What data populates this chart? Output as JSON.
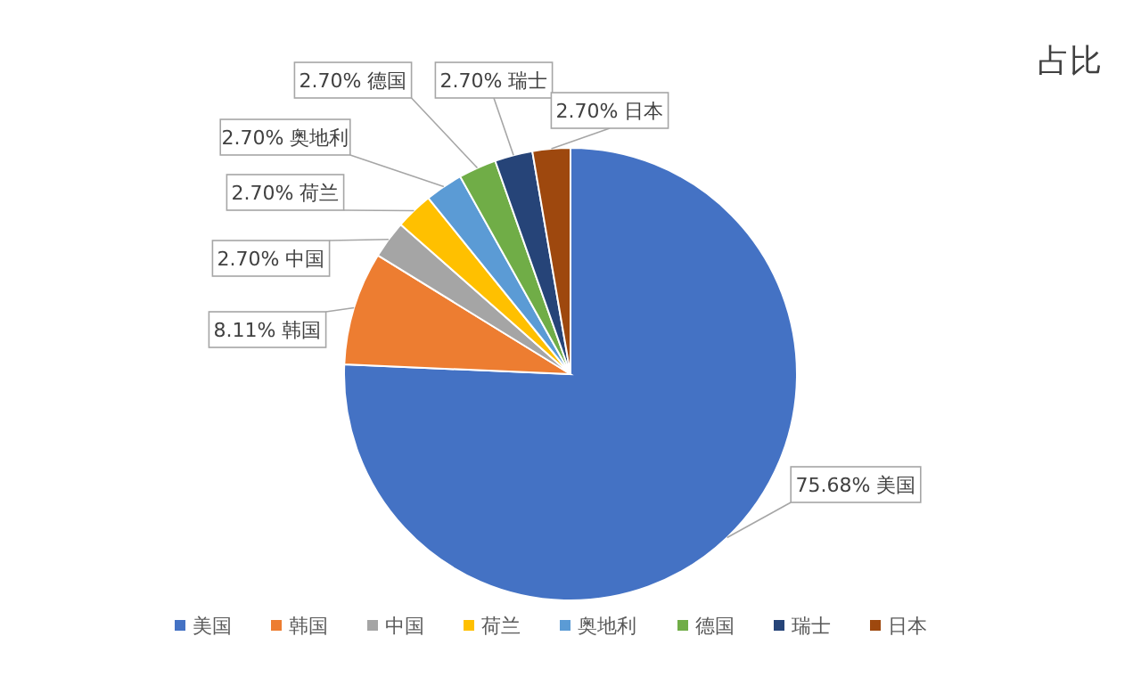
{
  "chart_data": {
    "type": "pie",
    "title": "占比",
    "categories": [
      "美国",
      "韩国",
      "中国",
      "荷兰",
      "奥地利",
      "德国",
      "瑞士",
      "日本"
    ],
    "values": [
      75.68,
      8.11,
      2.7,
      2.7,
      2.7,
      2.7,
      2.7,
      2.7
    ],
    "colors": [
      "#4472c4",
      "#ed7d31",
      "#a5a5a5",
      "#ffc000",
      "#5b9bd5",
      "#70ad47",
      "#264478",
      "#9e480e"
    ],
    "value_labels": [
      "75.68%",
      "8.11%",
      "2.70%",
      "2.70%",
      "2.70%",
      "2.70%",
      "2.70%",
      "2.70%"
    ],
    "legend": "bottom"
  }
}
